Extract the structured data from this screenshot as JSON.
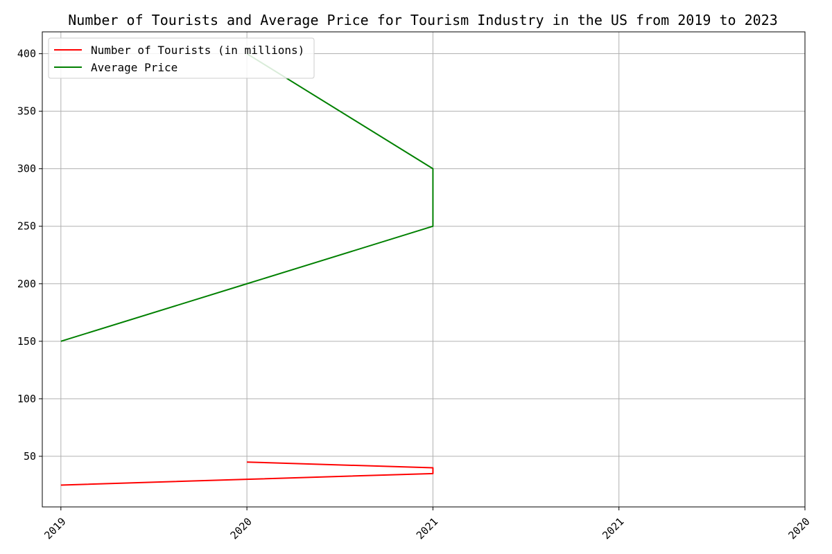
{
  "chart_data": {
    "type": "line",
    "title": "Number of Tourists and Average Price for Tourism Industry in the US from 2019 to 2023",
    "xlabel": "",
    "ylabel": "",
    "x_tick_labels": [
      "2019",
      "2020",
      "2021",
      "2021",
      "2020"
    ],
    "x_tick_positions": [
      0,
      1,
      2,
      3,
      4
    ],
    "xlim": [
      -0.1,
      4
    ],
    "y_ticks": [
      50,
      100,
      150,
      200,
      250,
      300,
      350,
      400
    ],
    "ylim": [
      6,
      419
    ],
    "grid": true,
    "legend_position": "top-left",
    "series": [
      {
        "name": "Number of Tourists (in millions)",
        "color": "#ff0000",
        "x": [
          0,
          1,
          2,
          2,
          1
        ],
        "y": [
          25,
          30,
          35,
          40,
          45
        ]
      },
      {
        "name": "Average Price",
        "color": "#008000",
        "x": [
          0,
          1,
          2,
          2,
          1
        ],
        "y": [
          150,
          200,
          250,
          300,
          400
        ]
      }
    ]
  }
}
